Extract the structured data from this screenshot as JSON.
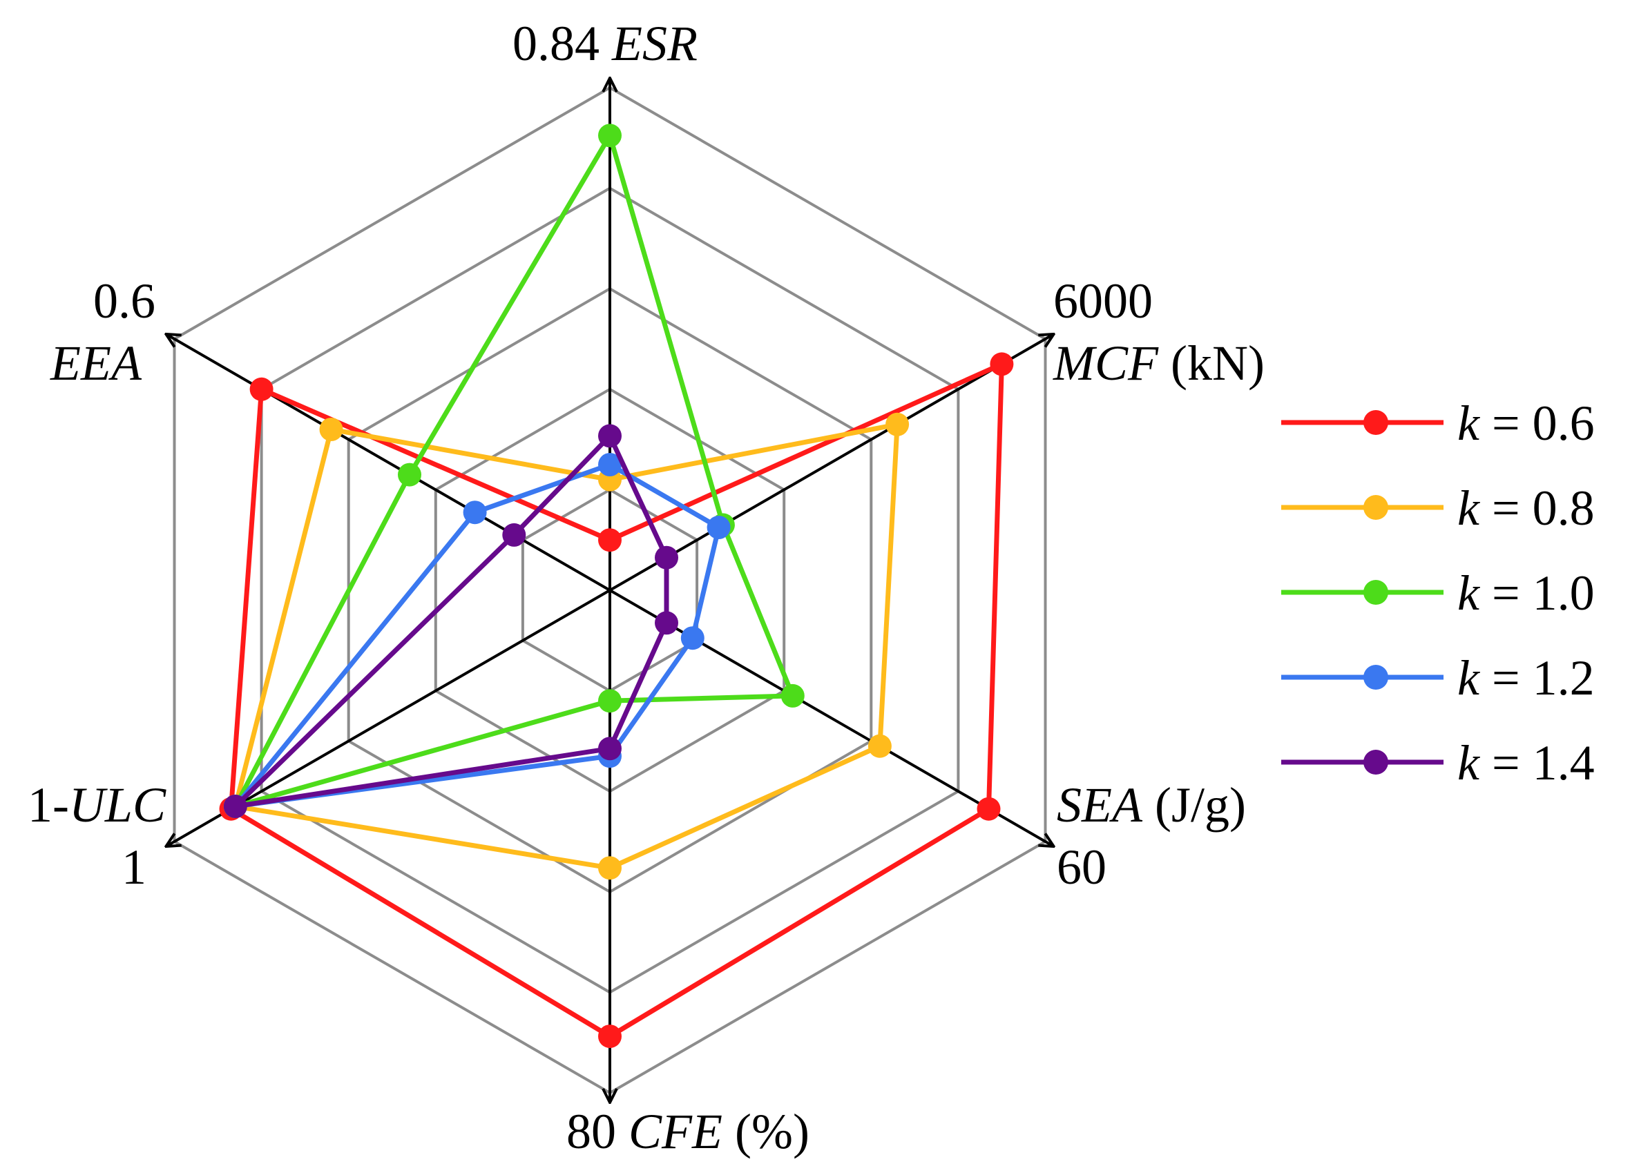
{
  "chart_data": {
    "type": "radar",
    "axes": [
      {
        "id": "ESR",
        "max_label": "0.84",
        "name": "ESR",
        "unit": "",
        "max": 0.84
      },
      {
        "id": "MCF",
        "max_label": "6000",
        "name": "MCF",
        "unit": "(kN)",
        "max": 6000
      },
      {
        "id": "SEA",
        "max_label": "60",
        "name": "SEA",
        "unit": "(J/g)",
        "max": 60
      },
      {
        "id": "CFE",
        "max_label": "80",
        "name": "CFE",
        "unit": "(%)",
        "max": 80
      },
      {
        "id": "ULC",
        "max_label": "1",
        "name_prefix": "1-",
        "name": "ULC",
        "unit": "",
        "max": 1
      },
      {
        "id": "EEA",
        "max_label": "0.6",
        "name": "EEA",
        "unit": "",
        "max": 0.6
      }
    ],
    "rings": 5,
    "grid": true,
    "legend_position": "right",
    "series": [
      {
        "name": "k = 0.6",
        "k_symbol": "k",
        "k_value": "= 0.6",
        "color": "#ff1a1a",
        "values": [
          0.084,
          5400,
          52.2,
          71.0,
          0.87,
          0.48
        ]
      },
      {
        "name": "k = 0.8",
        "k_symbol": "k",
        "k_value": "= 0.8",
        "color": "#ffbb1c",
        "values": [
          0.185,
          3960,
          37.2,
          44.2,
          0.86,
          0.384
        ]
      },
      {
        "name": "k = 1.0",
        "k_symbol": "k",
        "k_value": "= 1.0",
        "color": "#4ddc1a",
        "values": [
          0.76,
          1560,
          25.2,
          17.6,
          0.86,
          0.276
        ]
      },
      {
        "name": "k = 1.2",
        "k_symbol": "k",
        "k_value": "= 1.2",
        "color": "#3a78f0",
        "values": [
          0.21,
          1500,
          11.4,
          26.4,
          0.86,
          0.186
        ]
      },
      {
        "name": "k = 1.4",
        "k_symbol": "k",
        "k_value": "= 1.4",
        "color": "#660a8c",
        "values": [
          0.258,
          780,
          7.8,
          25.2,
          0.86,
          0.132
        ]
      }
    ]
  }
}
